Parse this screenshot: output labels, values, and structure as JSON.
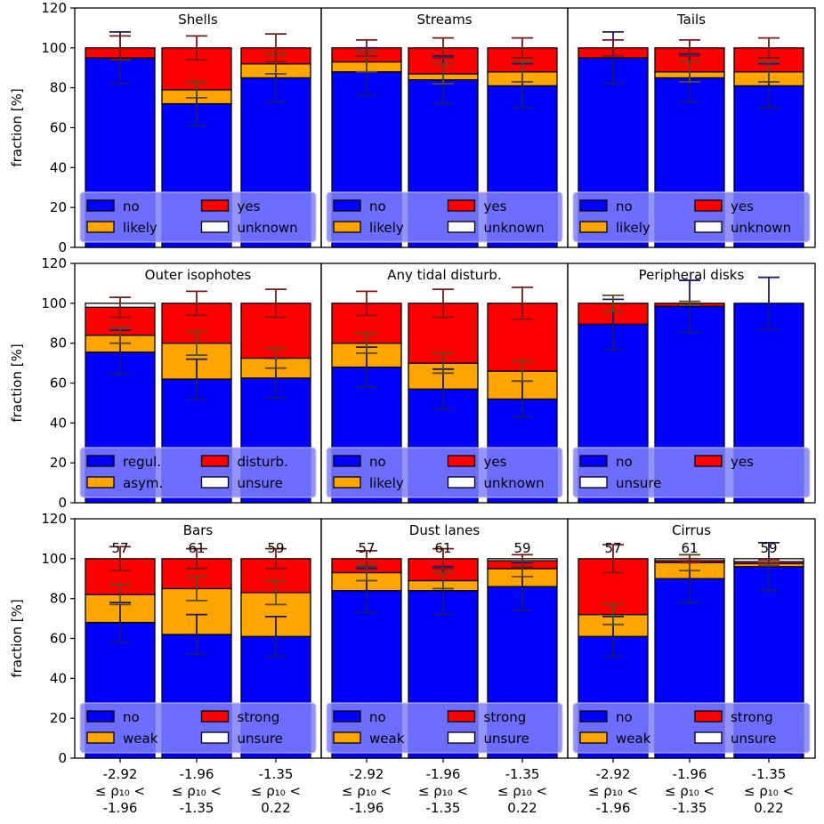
{
  "colors": {
    "no": "#0000ff",
    "likely": "#ffa500",
    "yes": "#ff0000",
    "unknown": "#ffffff",
    "frame": "#000000",
    "legend_bg": "#8080ff"
  },
  "y_axis_label": "fraction [%]",
  "y_ticks": [
    "0",
    "20",
    "40",
    "60",
    "80",
    "100",
    "120"
  ],
  "x_bins": [
    {
      "top": "-2.92",
      "mid": "≤ ρ₁₀ <",
      "bottom": "-1.96"
    },
    {
      "top": "-1.96",
      "mid": "≤ ρ₁₀ <",
      "bottom": "-1.35"
    },
    {
      "top": "-1.35",
      "mid": "≤ ρ₁₀ <",
      "bottom": "0.22"
    }
  ],
  "chart_data": [
    {
      "type": "bar",
      "stacked": true,
      "title": "Shells",
      "ylim": [
        0,
        120
      ],
      "ylabel": "fraction [%]",
      "categories": [
        "-2.92 ≤ ρ₁₀ < -1.96",
        "-1.96 ≤ ρ₁₀ < -1.35",
        "-1.35 ≤ ρ₁₀ < 0.22"
      ],
      "series": [
        {
          "name": "no",
          "color": "#0000ff",
          "values": [
            95,
            72,
            85
          ],
          "err": [
            13,
            11,
            12
          ]
        },
        {
          "name": "likely",
          "color": "#ffa500",
          "values": [
            0,
            7,
            7
          ],
          "err": [
            0,
            4,
            5
          ]
        },
        {
          "name": "yes",
          "color": "#ff0000",
          "values": [
            5,
            21,
            8
          ],
          "err": [
            6,
            6,
            7
          ]
        },
        {
          "name": "unknown",
          "color": "#ffffff",
          "values": [
            0,
            0,
            0
          ]
        }
      ],
      "legend": [
        "no",
        "likely",
        "yes",
        "unknown"
      ],
      "legend_loc": "lower center",
      "legend_cols": 2,
      "counts": []
    },
    {
      "type": "bar",
      "stacked": true,
      "title": "Streams",
      "ylim": [
        0,
        120
      ],
      "categories": [
        "-2.92 ≤ ρ₁₀ < -1.96",
        "-1.96 ≤ ρ₁₀ < -1.35",
        "-1.35 ≤ ρ₁₀ < 0.22"
      ],
      "series": [
        {
          "name": "no",
          "color": "#0000ff",
          "values": [
            88,
            84,
            81
          ],
          "err": [
            12,
            12,
            11
          ]
        },
        {
          "name": "likely",
          "color": "#ffa500",
          "values": [
            5,
            3,
            7
          ],
          "err": [
            5,
            5,
            5
          ]
        },
        {
          "name": "yes",
          "color": "#ff0000",
          "values": [
            7,
            13,
            12
          ],
          "err": [
            4,
            5,
            5
          ]
        },
        {
          "name": "unknown",
          "color": "#ffffff",
          "values": [
            0,
            0,
            0
          ]
        }
      ],
      "legend": [
        "no",
        "likely",
        "yes",
        "unknown"
      ],
      "legend_loc": "lower center",
      "legend_cols": 2,
      "counts": []
    },
    {
      "type": "bar",
      "stacked": true,
      "title": "Tails",
      "ylim": [
        0,
        120
      ],
      "categories": [
        "-2.92 ≤ ρ₁₀ < -1.96",
        "-1.96 ≤ ρ₁₀ < -1.35",
        "-1.35 ≤ ρ₁₀ < 0.22"
      ],
      "series": [
        {
          "name": "no",
          "color": "#0000ff",
          "values": [
            95,
            85,
            81
          ],
          "err": [
            13,
            12,
            11
          ]
        },
        {
          "name": "likely",
          "color": "#ffa500",
          "values": [
            0,
            3,
            7
          ],
          "err": [
            0,
            5,
            5
          ]
        },
        {
          "name": "yes",
          "color": "#ff0000",
          "values": [
            5,
            12,
            12
          ],
          "err": [
            4,
            4,
            5
          ]
        },
        {
          "name": "unknown",
          "color": "#ffffff",
          "values": [
            0,
            0,
            0
          ]
        }
      ],
      "legend": [
        "no",
        "likely",
        "yes",
        "unknown"
      ],
      "legend_loc": "lower center",
      "legend_cols": 2,
      "counts": []
    },
    {
      "type": "bar",
      "stacked": true,
      "title": "Outer isophotes",
      "ylim": [
        0,
        120
      ],
      "ylabel": "fraction [%]",
      "categories": [
        "-2.92 ≤ ρ₁₀ < -1.96",
        "-1.96 ≤ ρ₁₀ < -1.35",
        "-1.35 ≤ ρ₁₀ < 0.22"
      ],
      "series": [
        {
          "name": "regul.",
          "color": "#0000ff",
          "values": [
            75.5,
            62,
            62.5
          ],
          "err": [
            11,
            10,
            10
          ]
        },
        {
          "name": "asym.",
          "color": "#ffa500",
          "values": [
            8.5,
            18,
            10
          ],
          "err": [
            4,
            6,
            5
          ]
        },
        {
          "name": "disturb.",
          "color": "#ff0000",
          "values": [
            14,
            20,
            27.5
          ],
          "err": [
            5,
            6,
            7
          ]
        },
        {
          "name": "unsure",
          "color": "#ffffff",
          "values": [
            2,
            0,
            0
          ]
        }
      ],
      "legend": [
        "regul.",
        "asym.",
        "disturb.",
        "unsure"
      ],
      "legend_loc": "lower center",
      "legend_cols": 2,
      "counts": []
    },
    {
      "type": "bar",
      "stacked": true,
      "title": "Any tidal disturb.",
      "ylim": [
        0,
        120
      ],
      "categories": [
        "-2.92 ≤ ρ₁₀ < -1.96",
        "-1.96 ≤ ρ₁₀ < -1.35",
        "-1.35 ≤ ρ₁₀ < 0.22"
      ],
      "series": [
        {
          "name": "no",
          "color": "#0000ff",
          "values": [
            68,
            57,
            52
          ],
          "err": [
            10,
            10,
            9
          ]
        },
        {
          "name": "likely",
          "color": "#ffa500",
          "values": [
            12,
            13,
            14
          ],
          "err": [
            5,
            5,
            5
          ]
        },
        {
          "name": "yes",
          "color": "#ff0000",
          "values": [
            20,
            30,
            34
          ],
          "err": [
            6,
            7,
            8
          ]
        },
        {
          "name": "unknown",
          "color": "#ffffff",
          "values": [
            0,
            0,
            0
          ]
        }
      ],
      "legend": [
        "no",
        "likely",
        "yes",
        "unknown"
      ],
      "legend_loc": "lower center",
      "legend_cols": 2,
      "counts": []
    },
    {
      "type": "bar",
      "stacked": true,
      "title": "Peripheral disks",
      "ylim": [
        0,
        120
      ],
      "categories": [
        "-2.92 ≤ ρ₁₀ < -1.96",
        "-1.96 ≤ ρ₁₀ < -1.35",
        "-1.35 ≤ ρ₁₀ < 0.22"
      ],
      "series": [
        {
          "name": "no",
          "color": "#0000ff",
          "values": [
            89.5,
            98.5,
            100
          ],
          "err": [
            12.5,
            13,
            13
          ]
        },
        {
          "name": "yes",
          "color": "#ff0000",
          "values": [
            10.5,
            1.5,
            0
          ],
          "err": [
            4,
            1,
            0
          ]
        },
        {
          "name": "unsure",
          "color": "#ffffff",
          "values": [
            0,
            0,
            0
          ]
        }
      ],
      "legend": [
        "no",
        "unsure",
        "yes"
      ],
      "legend_loc": "lower center",
      "legend_cols": 2,
      "counts": []
    },
    {
      "type": "bar",
      "stacked": true,
      "title": "Bars",
      "ylim": [
        0,
        120
      ],
      "ylabel": "fraction [%]",
      "categories": [
        "-2.92 ≤ ρ₁₀ < -1.96",
        "-1.96 ≤ ρ₁₀ < -1.35",
        "-1.35 ≤ ρ₁₀ < 0.22"
      ],
      "series": [
        {
          "name": "no",
          "color": "#0000ff",
          "values": [
            68,
            62,
            61
          ],
          "err": [
            10,
            10,
            10
          ]
        },
        {
          "name": "weak",
          "color": "#ffa500",
          "values": [
            14,
            23,
            22
          ],
          "err": [
            5,
            6,
            6
          ]
        },
        {
          "name": "strong",
          "color": "#ff0000",
          "values": [
            18,
            15,
            17
          ],
          "err": [
            6,
            5,
            5
          ]
        },
        {
          "name": "unsure",
          "color": "#ffffff",
          "values": [
            0,
            0,
            0
          ]
        }
      ],
      "legend": [
        "no",
        "weak",
        "strong",
        "unsure"
      ],
      "legend_loc": "lower center",
      "legend_cols": 2,
      "counts": [
        "57",
        "61",
        "59"
      ]
    },
    {
      "type": "bar",
      "stacked": true,
      "title": "Dust lanes",
      "ylim": [
        0,
        120
      ],
      "categories": [
        "-2.92 ≤ ρ₁₀ < -1.96",
        "-1.96 ≤ ρ₁₀ < -1.35",
        "-1.35 ≤ ρ₁₀ < 0.22"
      ],
      "series": [
        {
          "name": "no",
          "color": "#0000ff",
          "values": [
            84,
            84,
            86
          ],
          "err": [
            11,
            12,
            12
          ]
        },
        {
          "name": "weak",
          "color": "#ffa500",
          "values": [
            9,
            5,
            9
          ],
          "err": [
            4,
            4,
            4
          ]
        },
        {
          "name": "strong",
          "color": "#ff0000",
          "values": [
            7,
            11,
            4
          ],
          "err": [
            4,
            5,
            3
          ]
        },
        {
          "name": "unsure",
          "color": "#ffffff",
          "values": [
            0,
            0,
            1
          ]
        }
      ],
      "legend": [
        "no",
        "weak",
        "strong",
        "unsure"
      ],
      "legend_loc": "lower center",
      "legend_cols": 2,
      "counts": [
        "57",
        "61",
        "59"
      ]
    },
    {
      "type": "bar",
      "stacked": true,
      "title": "Cirrus",
      "ylim": [
        0,
        120
      ],
      "categories": [
        "-2.92 ≤ ρ₁₀ < -1.96",
        "-1.96 ≤ ρ₁₀ < -1.35",
        "-1.35 ≤ ρ₁₀ < 0.22"
      ],
      "series": [
        {
          "name": "no",
          "color": "#0000ff",
          "values": [
            61,
            90,
            96
          ],
          "err": [
            10,
            12,
            12
          ]
        },
        {
          "name": "weak",
          "color": "#ffa500",
          "values": [
            11,
            8,
            1.5
          ],
          "err": [
            5,
            4,
            1
          ]
        },
        {
          "name": "strong",
          "color": "#ff0000",
          "values": [
            28,
            1,
            1
          ],
          "err": [
            7,
            1,
            1
          ]
        },
        {
          "name": "unsure",
          "color": "#ffffff",
          "values": [
            0,
            1,
            1.5
          ]
        }
      ],
      "legend": [
        "no",
        "weak",
        "strong",
        "unsure"
      ],
      "legend_loc": "lower center",
      "legend_cols": 2,
      "counts": [
        "57",
        "61",
        "59"
      ]
    }
  ]
}
